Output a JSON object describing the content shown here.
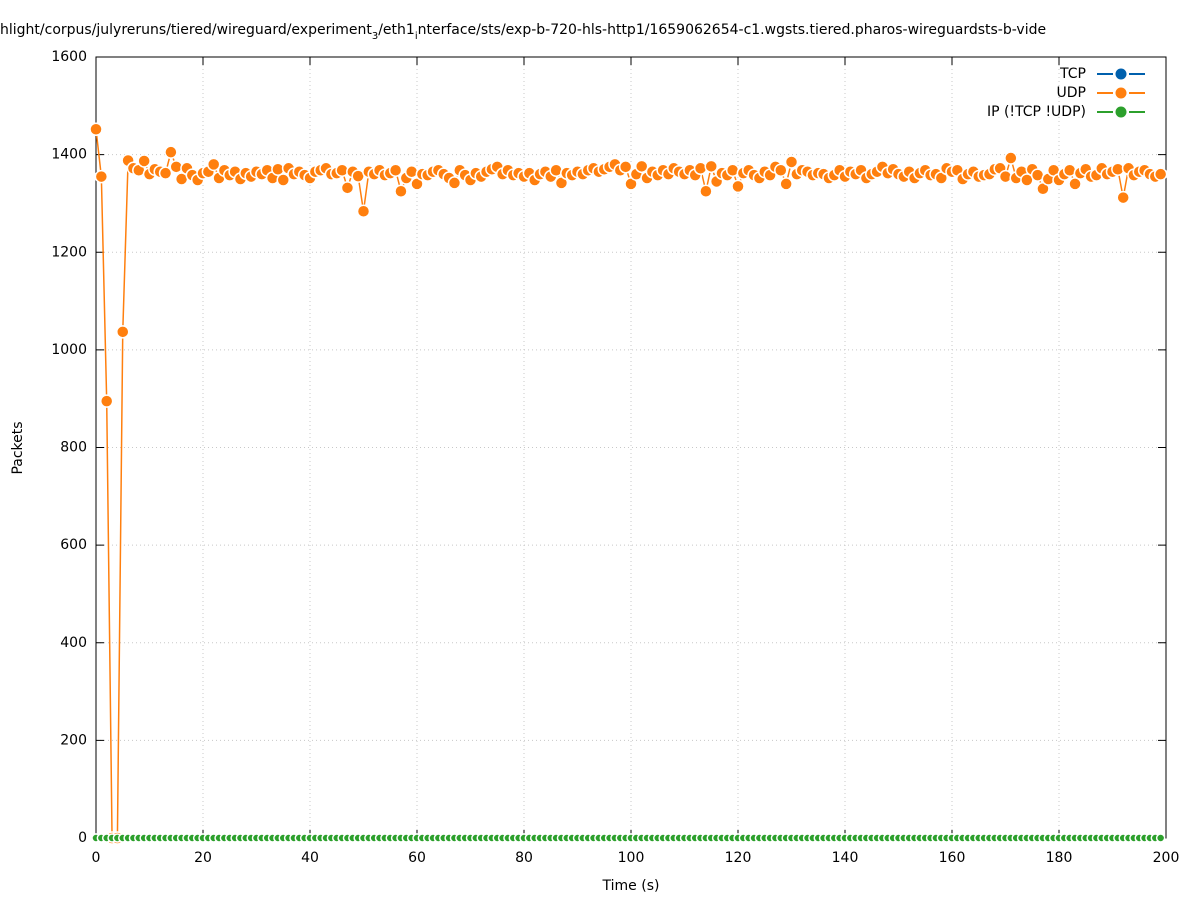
{
  "chart_data": {
    "type": "line",
    "title": [
      "hlight/corpus/julyreruns/tiered/wireguard/experiment",
      "3",
      "/eth1",
      "i",
      "nterface/sts/exp-b-720-hls-http1/1659062654-c1.wgsts.tiered.pharos-wireguardsts-b-vide"
    ],
    "x_label": "Time (s)",
    "y_label": "Packets",
    "xlim": [
      0,
      200
    ],
    "xticks": [
      0,
      20,
      40,
      60,
      80,
      100,
      120,
      140,
      160,
      180,
      200
    ],
    "ylim": [
      0,
      1600
    ],
    "yticks": [
      0,
      200,
      400,
      600,
      800,
      1000,
      1200,
      1400,
      1600
    ],
    "grid": true,
    "legend": "top-right",
    "x": [
      0,
      1,
      2,
      3,
      4,
      5,
      6,
      7,
      8,
      9,
      10,
      11,
      12,
      13,
      14,
      15,
      16,
      17,
      18,
      19,
      20,
      21,
      22,
      23,
      24,
      25,
      26,
      27,
      28,
      29,
      30,
      31,
      32,
      33,
      34,
      35,
      36,
      37,
      38,
      39,
      40,
      41,
      42,
      43,
      44,
      45,
      46,
      47,
      48,
      49,
      50,
      51,
      52,
      53,
      54,
      55,
      56,
      57,
      58,
      59,
      60,
      61,
      62,
      63,
      64,
      65,
      66,
      67,
      68,
      69,
      70,
      71,
      72,
      73,
      74,
      75,
      76,
      77,
      78,
      79,
      80,
      81,
      82,
      83,
      84,
      85,
      86,
      87,
      88,
      89,
      90,
      91,
      92,
      93,
      94,
      95,
      96,
      97,
      98,
      99,
      100,
      101,
      102,
      103,
      104,
      105,
      106,
      107,
      108,
      109,
      110,
      111,
      112,
      113,
      114,
      115,
      116,
      117,
      118,
      119,
      120,
      121,
      122,
      123,
      124,
      125,
      126,
      127,
      128,
      129,
      130,
      131,
      132,
      133,
      134,
      135,
      136,
      137,
      138,
      139,
      140,
      141,
      142,
      143,
      144,
      145,
      146,
      147,
      148,
      149,
      150,
      151,
      152,
      153,
      154,
      155,
      156,
      157,
      158,
      159,
      160,
      161,
      162,
      163,
      164,
      165,
      166,
      167,
      168,
      169,
      170,
      171,
      172,
      173,
      174,
      175,
      176,
      177,
      178,
      179,
      180,
      181,
      182,
      183,
      184,
      185,
      186,
      187,
      188,
      189,
      190,
      191,
      192,
      193,
      194,
      195,
      196,
      197,
      198,
      199
    ],
    "series": [
      {
        "name": "TCP",
        "color": "#0060ad",
        "values": [
          0,
          0,
          0,
          0,
          0,
          0,
          0,
          0,
          0,
          0,
          0,
          0,
          0,
          0,
          0,
          0,
          0,
          0,
          0,
          0,
          0,
          0,
          0,
          0,
          0,
          0,
          0,
          0,
          0,
          0,
          0,
          0,
          0,
          0,
          0,
          0,
          0,
          0,
          0,
          0,
          0,
          0,
          0,
          0,
          0,
          0,
          0,
          0,
          0,
          0,
          0,
          0,
          0,
          0,
          0,
          0,
          0,
          0,
          0,
          0,
          0,
          0,
          0,
          0,
          0,
          0,
          0,
          0,
          0,
          0,
          0,
          0,
          0,
          0,
          0,
          0,
          0,
          0,
          0,
          0,
          0,
          0,
          0,
          0,
          0,
          0,
          0,
          0,
          0,
          0,
          0,
          0,
          0,
          0,
          0,
          0,
          0,
          0,
          0,
          0,
          0,
          0,
          0,
          0,
          0,
          0,
          0,
          0,
          0,
          0,
          0,
          0,
          0,
          0,
          0,
          0,
          0,
          0,
          0,
          0,
          0,
          0,
          0,
          0,
          0,
          0,
          0,
          0,
          0,
          0,
          0,
          0,
          0,
          0,
          0,
          0,
          0,
          0,
          0,
          0,
          0,
          0,
          0,
          0,
          0,
          0,
          0,
          0,
          0,
          0,
          0,
          0,
          0,
          0,
          0,
          0,
          0,
          0,
          0,
          0,
          0,
          0,
          0,
          0,
          0,
          0,
          0,
          0,
          0,
          0,
          0,
          0,
          0,
          0,
          0,
          0,
          0,
          0,
          0,
          0,
          0,
          0,
          0,
          0,
          0,
          0,
          0,
          0,
          0,
          0,
          0,
          0,
          0,
          0,
          0,
          0,
          0,
          0,
          0,
          0
        ]
      },
      {
        "name": "UDP",
        "color": "#ff7f0e",
        "values": [
          1452,
          1355,
          895,
          0,
          0,
          1037,
          1388,
          1372,
          1368,
          1387,
          1360,
          1370,
          1365,
          1362,
          1405,
          1375,
          1350,
          1372,
          1358,
          1348,
          1362,
          1365,
          1380,
          1352,
          1368,
          1358,
          1365,
          1350,
          1362,
          1355,
          1365,
          1360,
          1368,
          1352,
          1370,
          1348,
          1372,
          1360,
          1365,
          1358,
          1352,
          1365,
          1368,
          1372,
          1360,
          1362,
          1368,
          1332,
          1365,
          1356,
          1284,
          1365,
          1360,
          1368,
          1358,
          1362,
          1368,
          1325,
          1352,
          1365,
          1340,
          1360,
          1358,
          1365,
          1368,
          1360,
          1352,
          1342,
          1368,
          1358,
          1348,
          1362,
          1355,
          1365,
          1370,
          1375,
          1360,
          1368,
          1358,
          1362,
          1355,
          1362,
          1348,
          1360,
          1365,
          1355,
          1368,
          1342,
          1362,
          1358,
          1365,
          1360,
          1368,
          1372,
          1365,
          1370,
          1375,
          1380,
          1368,
          1375,
          1340,
          1360,
          1376,
          1352,
          1365,
          1358,
          1368,
          1360,
          1372,
          1365,
          1360,
          1368,
          1358,
          1372,
          1325,
          1376,
          1345,
          1362,
          1358,
          1368,
          1335,
          1362,
          1368,
          1358,
          1352,
          1365,
          1358,
          1375,
          1368,
          1340,
          1385,
          1360,
          1368,
          1365,
          1358,
          1362,
          1360,
          1352,
          1358,
          1368,
          1355,
          1365,
          1360,
          1368,
          1352,
          1360,
          1365,
          1375,
          1362,
          1370,
          1360,
          1355,
          1365,
          1352,
          1362,
          1368,
          1358,
          1360,
          1352,
          1372,
          1365,
          1368,
          1350,
          1360,
          1365,
          1355,
          1358,
          1360,
          1370,
          1372,
          1355,
          1393,
          1352,
          1365,
          1348,
          1370,
          1358,
          1330,
          1350,
          1368,
          1348,
          1360,
          1368,
          1340,
          1362,
          1370,
          1355,
          1358,
          1372,
          1360,
          1365,
          1370,
          1312,
          1372,
          1358,
          1365,
          1368,
          1360,
          1355,
          1360
        ]
      },
      {
        "name": "IP (!TCP  !UDP)",
        "color": "#2ca02c",
        "values": [
          0,
          0,
          0,
          0,
          0,
          0,
          0,
          0,
          0,
          0,
          0,
          0,
          0,
          0,
          0,
          0,
          0,
          0,
          0,
          0,
          0,
          0,
          0,
          0,
          0,
          0,
          0,
          0,
          0,
          0,
          0,
          0,
          0,
          0,
          0,
          0,
          0,
          0,
          0,
          0,
          0,
          0,
          0,
          0,
          0,
          0,
          0,
          0,
          0,
          0,
          0,
          0,
          0,
          0,
          0,
          0,
          0,
          0,
          0,
          0,
          0,
          0,
          0,
          0,
          0,
          0,
          0,
          0,
          0,
          0,
          0,
          0,
          0,
          0,
          0,
          0,
          0,
          0,
          0,
          0,
          0,
          0,
          0,
          0,
          0,
          0,
          0,
          0,
          0,
          0,
          0,
          0,
          0,
          0,
          0,
          0,
          0,
          0,
          0,
          0,
          0,
          0,
          0,
          0,
          0,
          0,
          0,
          0,
          0,
          0,
          0,
          0,
          0,
          0,
          0,
          0,
          0,
          0,
          0,
          0,
          0,
          0,
          0,
          0,
          0,
          0,
          0,
          0,
          0,
          0,
          0,
          0,
          0,
          0,
          0,
          0,
          0,
          0,
          0,
          0,
          0,
          0,
          0,
          0,
          0,
          0,
          0,
          0,
          0,
          0,
          0,
          0,
          0,
          0,
          0,
          0,
          0,
          0,
          0,
          0,
          0,
          0,
          0,
          0,
          0,
          0,
          0,
          0,
          0,
          0,
          0,
          0,
          0,
          0,
          0,
          0,
          0,
          0,
          0,
          0,
          0,
          0,
          0,
          0,
          0,
          0,
          0,
          0,
          0,
          0,
          0,
          0,
          0,
          0,
          0,
          0,
          0,
          0,
          0,
          0
        ]
      }
    ]
  }
}
